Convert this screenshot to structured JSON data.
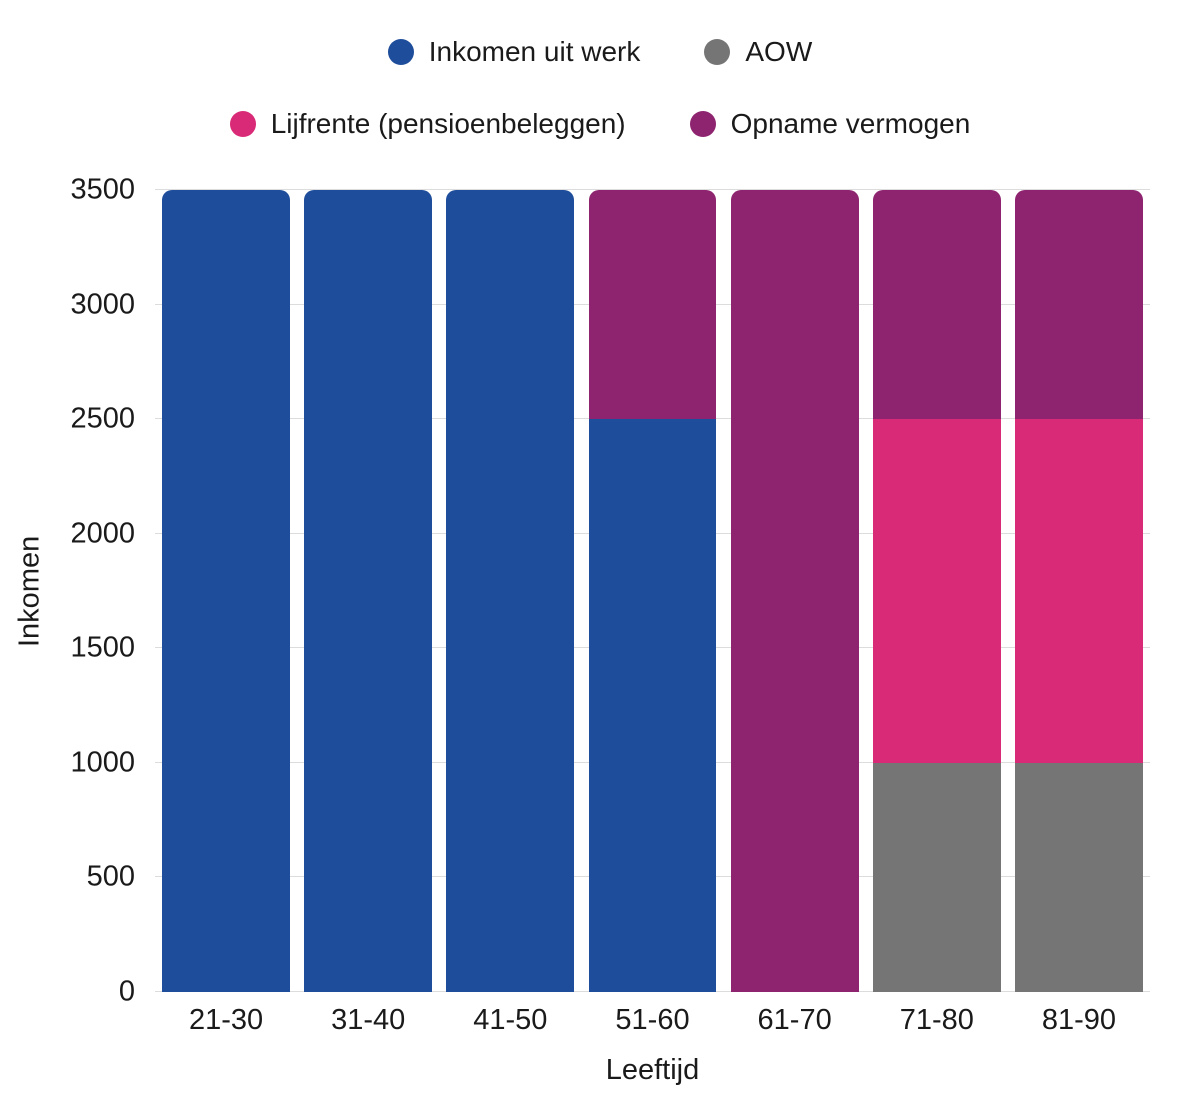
{
  "legend": {
    "rows": [
      [
        {
          "label": "Inkomen uit werk",
          "color": "#1e4d9b"
        },
        {
          "label": "AOW",
          "color": "#757575"
        }
      ],
      [
        {
          "label": "Lijfrente (pensioenbeleggen)",
          "color": "#d82a76"
        },
        {
          "label": "Opname vermogen",
          "color": "#8e2470"
        }
      ]
    ]
  },
  "chart_data": {
    "type": "bar",
    "stacked": true,
    "title": "",
    "xlabel": "Leeftijd",
    "ylabel": "Inkomen",
    "ylim": [
      0,
      3500
    ],
    "yticks": [
      0,
      500,
      1000,
      1500,
      2000,
      2500,
      3000,
      3500
    ],
    "grid": true,
    "legend_position": "top",
    "categories": [
      "21-30",
      "31-40",
      "41-50",
      "51-60",
      "61-70",
      "71-80",
      "81-90"
    ],
    "series": [
      {
        "name": "Inkomen uit werk",
        "color": "#1e4d9b",
        "values": [
          3500,
          3500,
          3500,
          2500,
          0,
          0,
          0
        ]
      },
      {
        "name": "AOW",
        "color": "#757575",
        "values": [
          0,
          0,
          0,
          0,
          0,
          1000,
          1000
        ]
      },
      {
        "name": "Lijfrente (pensioenbeleggen)",
        "color": "#d82a76",
        "values": [
          0,
          0,
          0,
          0,
          0,
          1500,
          1500
        ]
      },
      {
        "name": "Opname vermogen",
        "color": "#8e2470",
        "values": [
          0,
          0,
          0,
          1000,
          3500,
          1000,
          1000
        ]
      }
    ]
  }
}
